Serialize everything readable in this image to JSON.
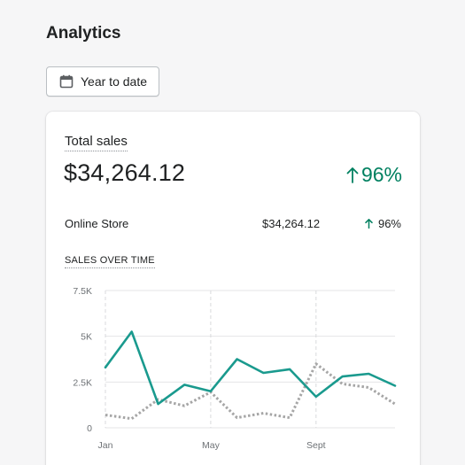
{
  "page": {
    "title": "Analytics"
  },
  "toolbar": {
    "date_range_label": "Year to date",
    "date_icon": "calendar-icon"
  },
  "card": {
    "title": "Total sales",
    "total_value": "$34,264.12",
    "total_change": "96%",
    "change_color": "#008060",
    "channels": [
      {
        "name": "Online Store",
        "value": "$34,264.12",
        "change": "96%"
      }
    ]
  },
  "chart_data": {
    "type": "line",
    "title": "SALES OVER TIME",
    "x_tick_labels": [
      "Jan",
      "May",
      "Sept"
    ],
    "y_tick_labels": [
      "0",
      "2.5K",
      "5K",
      "7.5K"
    ],
    "ylim": [
      0,
      7500
    ],
    "x_count": 12,
    "grid": true,
    "series": [
      {
        "color": "#1a9a8e",
        "style": "solid",
        "values": [
          3300,
          5250,
          1300,
          2350,
          2000,
          3750,
          3000,
          3200,
          1700,
          2800,
          2950,
          2300
        ]
      },
      {
        "color": "#a6a6a6",
        "style": "dotted",
        "values": [
          700,
          500,
          1550,
          1200,
          1950,
          550,
          800,
          550,
          3500,
          2400,
          2200,
          1300
        ]
      }
    ]
  }
}
